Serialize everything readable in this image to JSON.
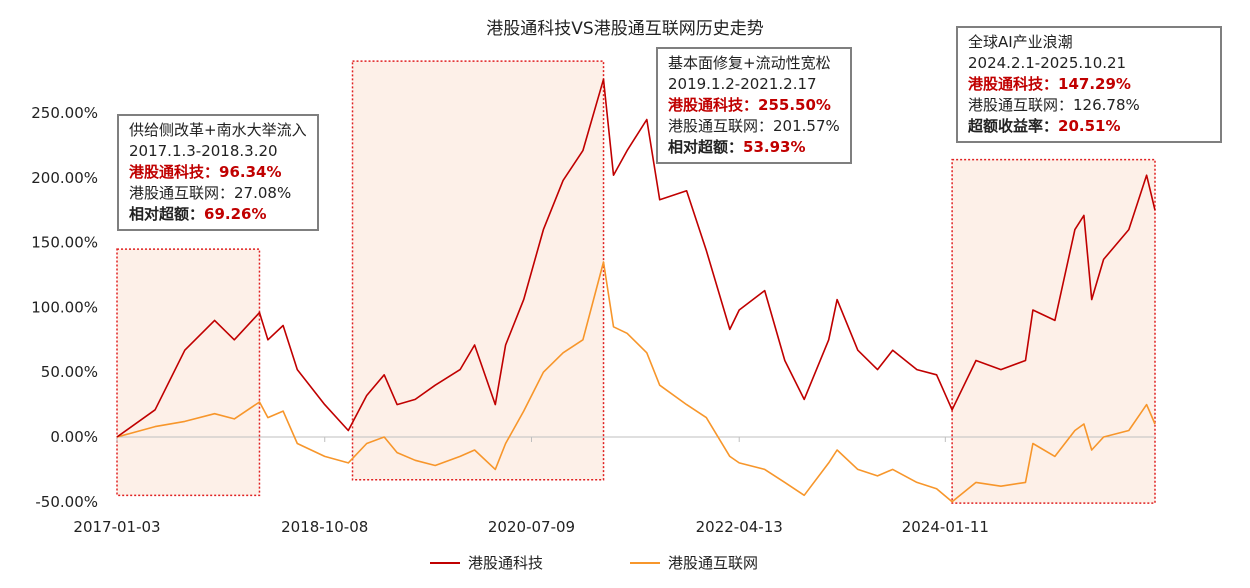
{
  "chart_data": {
    "type": "line",
    "title": "港股通科技VS港股通互联网历史走势",
    "xlabel": "",
    "ylabel": "",
    "ylim": [
      -50,
      250
    ],
    "yticks": [
      "-50.00%",
      "0.00%",
      "50.00%",
      "100.00%",
      "150.00%",
      "200.00%",
      "250.00%"
    ],
    "ytick_values": [
      -50,
      0,
      50,
      100,
      150,
      200,
      250
    ],
    "xticks": [
      "2017-01-03",
      "2018-10-08",
      "2020-07-09",
      "2022-04-13",
      "2024-01-11"
    ],
    "xrange": [
      "2017-01-03",
      "2025-10-21"
    ],
    "grid": false,
    "legend_placement": "bottom",
    "series": [
      {
        "name": "港股通科技",
        "color": "#c00000",
        "x": [
          "2017-01-03",
          "2017-05-01",
          "2017-08-01",
          "2017-11-01",
          "2018-01-01",
          "2018-03-20",
          "2018-04-15",
          "2018-06-01",
          "2018-07-15",
          "2018-10-08",
          "2018-12-20",
          "2019-02-15",
          "2019-04-10",
          "2019-05-20",
          "2019-07-15",
          "2019-09-15",
          "2019-12-01",
          "2020-01-15",
          "2020-03-19",
          "2020-04-20",
          "2020-06-15",
          "2020-08-15",
          "2020-10-15",
          "2020-12-15",
          "2021-02-17",
          "2021-03-20",
          "2021-05-01",
          "2021-07-01",
          "2021-08-10",
          "2021-11-01",
          "2022-01-01",
          "2022-03-15",
          "2022-04-13",
          "2022-07-01",
          "2022-09-01",
          "2022-10-31",
          "2023-01-15",
          "2023-02-10",
          "2023-04-15",
          "2023-06-15",
          "2023-08-01",
          "2023-10-15",
          "2023-12-15",
          "2024-02-01",
          "2024-04-15",
          "2024-07-01",
          "2024-09-15",
          "2024-10-08",
          "2024-12-15",
          "2025-02-15",
          "2025-03-15",
          "2025-04-08",
          "2025-05-15",
          "2025-08-01",
          "2025-09-25",
          "2025-10-21"
        ],
        "values": [
          0,
          21,
          67,
          90,
          75,
          96,
          75,
          86,
          52,
          25,
          5,
          32,
          48,
          25,
          29,
          40,
          52,
          71,
          25,
          71,
          106,
          160,
          198,
          221,
          276,
          202,
          221,
          245,
          183,
          190,
          144,
          83,
          98,
          113,
          59,
          29,
          75,
          106,
          67,
          52,
          67,
          52,
          48,
          21,
          59,
          52,
          59,
          98,
          90,
          160,
          171,
          106,
          137,
          160,
          202,
          175
        ]
      },
      {
        "name": "港股通互联网",
        "color": "#f7962b",
        "x": [
          "2017-01-03",
          "2017-05-01",
          "2017-08-01",
          "2017-11-01",
          "2018-01-01",
          "2018-03-20",
          "2018-04-15",
          "2018-06-01",
          "2018-07-15",
          "2018-10-08",
          "2018-12-20",
          "2019-02-15",
          "2019-04-10",
          "2019-05-20",
          "2019-07-15",
          "2019-09-15",
          "2019-12-01",
          "2020-01-15",
          "2020-03-19",
          "2020-04-20",
          "2020-06-15",
          "2020-08-15",
          "2020-10-15",
          "2020-12-15",
          "2021-02-17",
          "2021-03-20",
          "2021-05-01",
          "2021-07-01",
          "2021-08-10",
          "2021-11-01",
          "2022-01-01",
          "2022-03-15",
          "2022-04-13",
          "2022-07-01",
          "2022-09-01",
          "2022-10-31",
          "2023-01-15",
          "2023-02-10",
          "2023-04-15",
          "2023-06-15",
          "2023-08-01",
          "2023-10-15",
          "2023-12-15",
          "2024-02-01",
          "2024-04-15",
          "2024-07-01",
          "2024-09-15",
          "2024-10-08",
          "2024-12-15",
          "2025-02-15",
          "2025-03-15",
          "2025-04-08",
          "2025-05-15",
          "2025-08-01",
          "2025-09-25",
          "2025-10-21"
        ],
        "values": [
          0,
          8,
          12,
          18,
          14,
          27,
          15,
          20,
          -5,
          -15,
          -20,
          -5,
          0,
          -12,
          -18,
          -22,
          -15,
          -10,
          -25,
          -5,
          20,
          50,
          65,
          75,
          135,
          85,
          80,
          65,
          40,
          25,
          15,
          -15,
          -20,
          -25,
          -35,
          -45,
          -20,
          -10,
          -25,
          -30,
          -25,
          -35,
          -40,
          -50,
          -35,
          -38,
          -35,
          -5,
          -15,
          5,
          10,
          -10,
          0,
          5,
          25,
          10
        ]
      }
    ],
    "highlight_periods": [
      {
        "start": "2017-01-03",
        "end": "2018-03-20"
      },
      {
        "start": "2019-01-02",
        "end": "2021-02-17"
      },
      {
        "start": "2024-02-01",
        "end": "2025-10-21"
      }
    ],
    "annotations": [
      {
        "heading": "供给侧改革+南水大举流入",
        "period": "2017.1.3-2018.3.20",
        "tech_label": "港股通科技：",
        "tech_value": "96.34%",
        "inet_label": "港股通互联网：",
        "inet_value": "27.08%",
        "excess_label": "相对超额：",
        "excess_value": "69.26%"
      },
      {
        "heading": "基本面修复+流动性宽松",
        "period": "2019.1.2-2021.2.17",
        "tech_label": "港股通科技：",
        "tech_value": "255.50%",
        "inet_label": "港股通互联网：",
        "inet_value": "201.57%",
        "excess_label": "相对超额：",
        "excess_value": "53.93%"
      },
      {
        "heading": "全球AI产业浪潮",
        "period": "2024.2.1-2025.10.21",
        "tech_label": "港股通科技：",
        "tech_value": "147.29%",
        "inet_label": "港股通互联网：",
        "inet_value": "126.78%",
        "excess_label": "超额收益率：",
        "excess_value": "20.51%"
      }
    ]
  }
}
